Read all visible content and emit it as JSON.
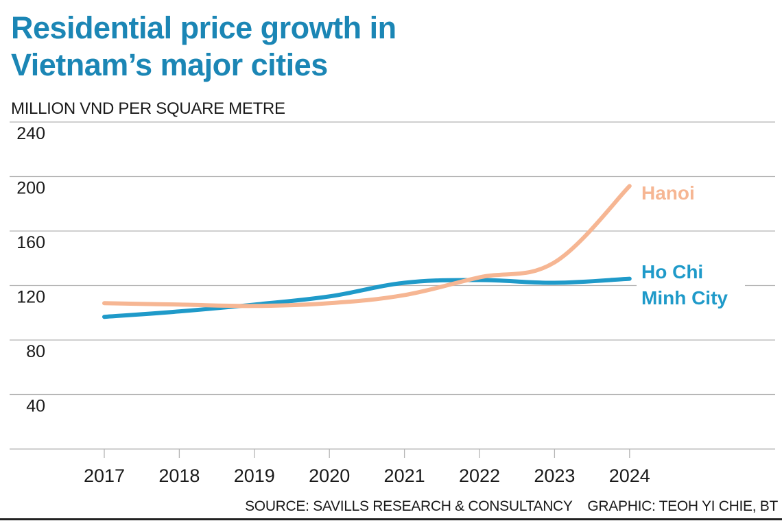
{
  "header": {
    "title_line1": "Residential price growth in",
    "title_line2": "Vietnam’s major cities",
    "unit": "MILLION VND PER SQUARE METRE"
  },
  "footer": {
    "source": "SOURCE: SAVILLS RESEARCH & CONSULTANCY    GRAPHIC: TEOH YI CHIE, BT"
  },
  "colors": {
    "title": "#1b86b5",
    "hanoi": "#f6b693",
    "hcmc": "#1f9ac9",
    "grid": "#b5b5b5",
    "text": "#1a1a1a"
  },
  "chart_data": {
    "type": "line",
    "title": "Residential price growth in Vietnam’s major cities",
    "xlabel": "",
    "ylabel": "MILLION VND PER SQUARE METRE",
    "x": [
      "2017",
      "2018",
      "2019",
      "2020",
      "2021",
      "2022",
      "2023",
      "2024"
    ],
    "ylim": [
      0,
      240
    ],
    "yticks": [
      40,
      80,
      120,
      160,
      200,
      240
    ],
    "grid": true,
    "legend": "inline-right",
    "series": [
      {
        "name": "Hanoi",
        "label_lines": [
          "Hanoi"
        ],
        "color": "#f6b693",
        "values": [
          107,
          106,
          105,
          107,
          113,
          126,
          137,
          193
        ]
      },
      {
        "name": "Ho Chi Minh City",
        "label_lines": [
          "Ho Chi",
          "Minh City"
        ],
        "color": "#1f9ac9",
        "values": [
          97,
          101,
          106,
          112,
          122,
          124,
          122,
          125
        ]
      }
    ],
    "source": "Savills Research & Consultancy"
  }
}
